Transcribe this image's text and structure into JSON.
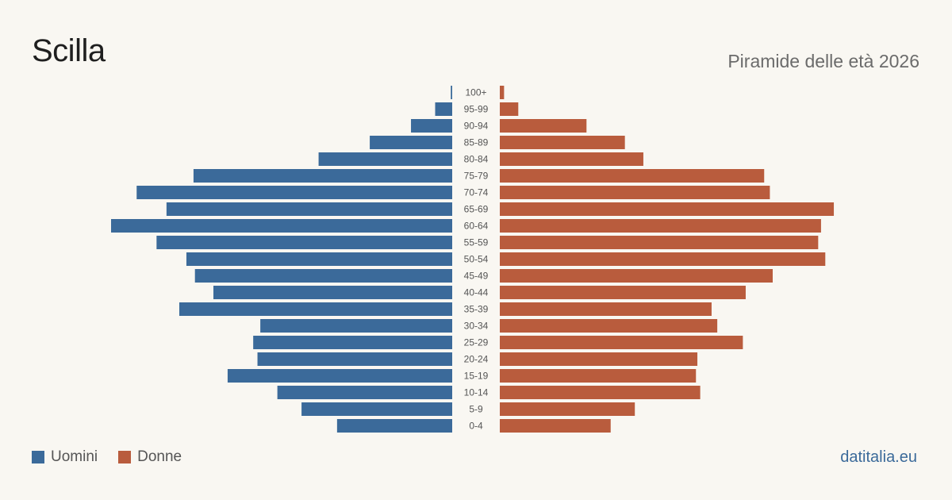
{
  "header": {
    "title": "Scilla",
    "subtitle": "Piramide delle età 2026"
  },
  "legend": {
    "men_label": "Uomini",
    "women_label": "Donne"
  },
  "footer": {
    "source": "datitalia.eu"
  },
  "colors": {
    "men": "#3b6a9a",
    "women": "#b95c3d",
    "background": "#f9f7f2"
  },
  "chart_data": {
    "type": "bar",
    "orientation": "horizontal-pyramid",
    "categories": [
      "100+",
      "95-99",
      "90-94",
      "85-89",
      "80-84",
      "75-79",
      "70-74",
      "65-69",
      "60-64",
      "55-59",
      "50-54",
      "45-49",
      "40-44",
      "35-39",
      "30-34",
      "25-29",
      "20-24",
      "15-19",
      "10-14",
      "5-9",
      "0-4"
    ],
    "series": [
      {
        "name": "Uomini",
        "values": [
          1,
          12,
          29,
          58,
          94,
          182,
          222,
          201,
          240,
          208,
          187,
          181,
          168,
          192,
          135,
          140,
          137,
          158,
          123,
          106,
          81
        ]
      },
      {
        "name": "Donne",
        "values": [
          3,
          13,
          61,
          88,
          101,
          186,
          190,
          235,
          226,
          224,
          229,
          192,
          173,
          149,
          153,
          171,
          139,
          138,
          141,
          95,
          78
        ]
      }
    ],
    "xlim": [
      0,
      240
    ],
    "grid": false,
    "legend_position": "bottom-left"
  }
}
